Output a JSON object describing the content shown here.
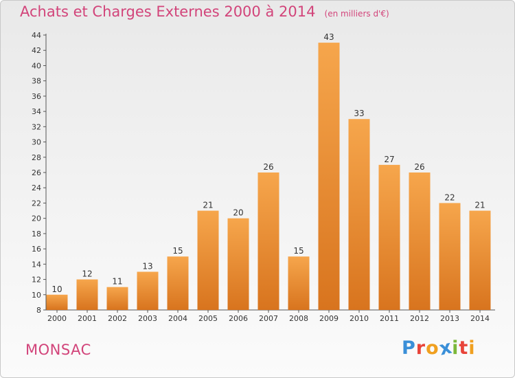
{
  "chart_data": {
    "type": "bar",
    "title": "Achats et Charges Externes 2000 à 2014",
    "subtitle": "(en milliers d'€)",
    "categories": [
      "2000",
      "2001",
      "2002",
      "2003",
      "2004",
      "2005",
      "2006",
      "2007",
      "2008",
      "2009",
      "2010",
      "2011",
      "2012",
      "2013",
      "2014"
    ],
    "values": [
      10,
      12,
      11,
      13,
      15,
      21,
      20,
      26,
      15,
      43,
      33,
      27,
      26,
      22,
      21
    ],
    "ylim": [
      8,
      44
    ],
    "yticks": [
      8,
      10,
      12,
      14,
      16,
      18,
      20,
      22,
      24,
      26,
      28,
      30,
      32,
      34,
      36,
      38,
      40,
      42,
      44
    ],
    "grid": false,
    "bar_color": "#f0973a"
  },
  "footer": {
    "commune": "MONSAC",
    "logo_text": "Proxiti"
  },
  "colors": {
    "title": "#d2447a",
    "logo_letters": [
      "#3a8fd8",
      "#e8443a",
      "#f0a020",
      "#3a8fd8",
      "#7cb83a",
      "#e8443a",
      "#f0a020"
    ]
  }
}
